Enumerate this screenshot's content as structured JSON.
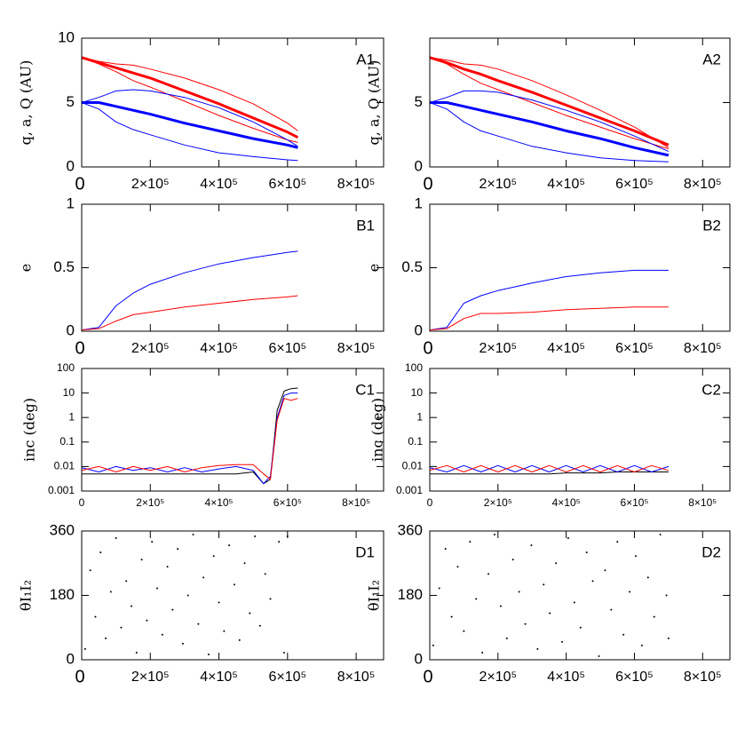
{
  "chart_data": [
    {
      "type": "line",
      "label": "A1",
      "ylabel": "q, a, Q (AU)",
      "x": [
        0,
        50000,
        100000,
        150000,
        200000,
        300000,
        400000,
        500000,
        600000,
        630000
      ],
      "series": [
        {
          "color": "#ff0000",
          "line_width": 3,
          "values": [
            8.5,
            8.1,
            7.7,
            7.3,
            6.9,
            5.9,
            4.9,
            3.8,
            2.7,
            2.3
          ]
        },
        {
          "color": "#ff0000",
          "line_width": 1,
          "values": [
            8.5,
            8.2,
            8.0,
            7.9,
            7.6,
            6.9,
            6.0,
            4.9,
            3.4,
            2.8
          ]
        },
        {
          "color": "#ff0000",
          "line_width": 1,
          "values": [
            8.5,
            8.0,
            7.4,
            6.7,
            6.2,
            5.1,
            4.0,
            3.0,
            2.1,
            1.9
          ]
        },
        {
          "color": "#0000ff",
          "line_width": 3,
          "values": [
            5,
            5,
            4.7,
            4.4,
            4.1,
            3.4,
            2.8,
            2.2,
            1.7,
            1.5
          ]
        },
        {
          "color": "#0000ff",
          "line_width": 1,
          "values": [
            5,
            5.4,
            5.9,
            6.0,
            5.9,
            5.4,
            4.6,
            3.5,
            2.1,
            1.6
          ]
        },
        {
          "color": "#0000ff",
          "line_width": 1,
          "values": [
            5,
            4.5,
            3.5,
            2.9,
            2.5,
            1.7,
            1.1,
            0.8,
            0.55,
            0.5
          ]
        }
      ],
      "xlim": [
        0,
        880000
      ],
      "ylim": [
        0,
        10
      ],
      "xticks": [
        0,
        {
          "value": 200000,
          "label": "2×10⁵"
        },
        {
          "value": 400000,
          "label": "4×10⁵"
        },
        {
          "value": 600000,
          "label": "6×10⁵"
        },
        {
          "value": 800000,
          "label": "8×10⁵"
        }
      ],
      "yticks": [
        0,
        5,
        10
      ]
    },
    {
      "type": "line",
      "label": "A2",
      "ylabel": "q, a, Q (AU)",
      "x": [
        0,
        50000,
        100000,
        150000,
        200000,
        300000,
        400000,
        500000,
        600000,
        700000
      ],
      "series": [
        {
          "color": "#ff0000",
          "line_width": 3,
          "values": [
            8.5,
            8.1,
            7.6,
            7.2,
            6.7,
            5.8,
            4.8,
            3.8,
            2.8,
            1.7
          ]
        },
        {
          "color": "#ff0000",
          "line_width": 1,
          "values": [
            8.5,
            8.3,
            8.0,
            7.9,
            7.6,
            6.7,
            5.6,
            4.4,
            3.1,
            1.5
          ]
        },
        {
          "color": "#ff0000",
          "line_width": 1,
          "values": [
            8.5,
            8.0,
            7.2,
            6.5,
            6.0,
            5.0,
            4.0,
            3.1,
            2.2,
            1.4
          ]
        },
        {
          "color": "#0000ff",
          "line_width": 3,
          "values": [
            5,
            5,
            4.7,
            4.4,
            4.1,
            3.5,
            2.8,
            2.2,
            1.5,
            0.9
          ]
        },
        {
          "color": "#0000ff",
          "line_width": 1,
          "values": [
            5,
            5.4,
            5.9,
            5.9,
            5.8,
            5.2,
            4.4,
            3.5,
            2.4,
            1.2
          ]
        },
        {
          "color": "#0000ff",
          "line_width": 1,
          "values": [
            5,
            4.5,
            3.5,
            2.8,
            2.4,
            1.6,
            1.1,
            0.7,
            0.5,
            0.4
          ]
        }
      ],
      "xlim": [
        0,
        880000
      ],
      "ylim": [
        0,
        10
      ],
      "xticks": [
        0,
        {
          "value": 200000,
          "label": "2×10⁵"
        },
        {
          "value": 400000,
          "label": "4×10⁵"
        },
        {
          "value": 600000,
          "label": "6×10⁵"
        },
        {
          "value": 800000,
          "label": "8×10⁵"
        }
      ],
      "yticks": [
        0,
        5
      ]
    },
    {
      "type": "line",
      "label": "B1",
      "ylabel": "e",
      "x": [
        0,
        50000,
        100000,
        150000,
        200000,
        300000,
        400000,
        500000,
        600000,
        630000
      ],
      "series": [
        {
          "color": "#0000ff",
          "line_width": 1,
          "values": [
            0.01,
            0.03,
            0.2,
            0.3,
            0.37,
            0.46,
            0.53,
            0.58,
            0.62,
            0.63
          ]
        },
        {
          "color": "#ff0000",
          "line_width": 1,
          "values": [
            0.01,
            0.02,
            0.08,
            0.13,
            0.15,
            0.19,
            0.22,
            0.25,
            0.27,
            0.28
          ]
        }
      ],
      "xlim": [
        0,
        880000
      ],
      "ylim": [
        0,
        1
      ],
      "xticks": [
        0,
        {
          "value": 200000,
          "label": "2×10⁵"
        },
        {
          "value": 400000,
          "label": "4×10⁵"
        },
        {
          "value": 600000,
          "label": "6×10⁵"
        },
        {
          "value": 800000,
          "label": "8×10⁵"
        }
      ],
      "yticks": [
        0,
        0.5,
        1
      ]
    },
    {
      "type": "line",
      "label": "B2",
      "ylabel": "e",
      "x": [
        0,
        50000,
        100000,
        150000,
        200000,
        300000,
        400000,
        500000,
        600000,
        700000
      ],
      "series": [
        {
          "color": "#0000ff",
          "line_width": 1,
          "values": [
            0.01,
            0.03,
            0.22,
            0.28,
            0.32,
            0.38,
            0.43,
            0.46,
            0.48,
            0.48
          ]
        },
        {
          "color": "#ff0000",
          "line_width": 1,
          "values": [
            0.01,
            0.02,
            0.1,
            0.14,
            0.14,
            0.15,
            0.17,
            0.18,
            0.19,
            0.19
          ]
        }
      ],
      "xlim": [
        0,
        880000
      ],
      "ylim": [
        0,
        1
      ],
      "xticks": [
        0,
        {
          "value": 200000,
          "label": "2×10⁵"
        },
        {
          "value": 400000,
          "label": "4×10⁵"
        },
        {
          "value": 600000,
          "label": "6×10⁵"
        },
        {
          "value": 800000,
          "label": "8×10⁵"
        }
      ],
      "yticks": [
        0,
        0.5,
        1
      ]
    },
    {
      "type": "line",
      "label": "C1",
      "ylabel": "inc (deg)",
      "log_y": true,
      "x": [
        0,
        50000,
        100000,
        150000,
        200000,
        250000,
        300000,
        350000,
        400000,
        450000,
        500000,
        530000,
        550000,
        570000,
        590000,
        610000,
        630000
      ],
      "series": [
        {
          "color": "#000000",
          "line_width": 1,
          "values": [
            0.005,
            0.005,
            0.005,
            0.005,
            0.005,
            0.005,
            0.005,
            0.005,
            0.005,
            0.005,
            0.006,
            0.002,
            0.003,
            2,
            12,
            15,
            16
          ]
        },
        {
          "color": "#0000ff",
          "line_width": 1,
          "values": [
            0.009,
            0.006,
            0.01,
            0.007,
            0.009,
            0.006,
            0.009,
            0.006,
            0.008,
            0.01,
            0.007,
            0.002,
            0.004,
            1,
            8,
            10,
            10
          ]
        },
        {
          "color": "#ff0000",
          "line_width": 1,
          "values": [
            0.007,
            0.01,
            0.006,
            0.01,
            0.007,
            0.01,
            0.006,
            0.009,
            0.011,
            0.012,
            0.012,
            0.005,
            0.003,
            0.8,
            6,
            5,
            6
          ]
        }
      ],
      "xlim": [
        0,
        880000
      ],
      "ylim": [
        0.001,
        100
      ],
      "xticks": [
        0,
        {
          "value": 200000,
          "label": "2×10⁵"
        },
        {
          "value": 400000,
          "label": "4×10⁵"
        },
        {
          "value": 600000,
          "label": "6×10⁵"
        },
        {
          "value": 800000,
          "label": "8×10⁵"
        }
      ],
      "yticks": [
        0.001,
        0.01,
        0.1,
        1,
        10,
        100
      ]
    },
    {
      "type": "line",
      "label": "C2",
      "ylabel": "inc (deg)",
      "log_y": true,
      "x": [
        0,
        50000,
        100000,
        150000,
        200000,
        250000,
        300000,
        350000,
        400000,
        450000,
        500000,
        550000,
        600000,
        650000,
        700000
      ],
      "series": [
        {
          "color": "#000000",
          "line_width": 1,
          "values": [
            0.005,
            0.005,
            0.005,
            0.005,
            0.005,
            0.005,
            0.005,
            0.005,
            0.0055,
            0.0055,
            0.0055,
            0.006,
            0.006,
            0.006,
            0.006
          ]
        },
        {
          "color": "#0000ff",
          "line_width": 1,
          "values": [
            0.009,
            0.006,
            0.011,
            0.006,
            0.011,
            0.006,
            0.011,
            0.006,
            0.011,
            0.006,
            0.011,
            0.006,
            0.011,
            0.006,
            0.01
          ]
        },
        {
          "color": "#ff0000",
          "line_width": 1,
          "values": [
            0.007,
            0.011,
            0.006,
            0.011,
            0.006,
            0.011,
            0.006,
            0.011,
            0.006,
            0.011,
            0.006,
            0.011,
            0.006,
            0.011,
            0.007
          ]
        }
      ],
      "xlim": [
        0,
        880000
      ],
      "ylim": [
        0.001,
        100
      ],
      "xticks": [
        0,
        {
          "value": 200000,
          "label": "2×10⁵"
        },
        {
          "value": 400000,
          "label": "4×10⁵"
        },
        {
          "value": 600000,
          "label": "6×10⁵"
        },
        {
          "value": 800000,
          "label": "8×10⁵"
        }
      ],
      "yticks": [
        0.001,
        0.01,
        0.1,
        1,
        10,
        100
      ]
    },
    {
      "type": "scatter",
      "label": "D1",
      "ylabel": "θI₁I₂",
      "color": "#000000",
      "x": [
        10000,
        25000,
        40000,
        55000,
        70000,
        85000,
        100000,
        115000,
        130000,
        145000,
        160000,
        175000,
        190000,
        205000,
        220000,
        235000,
        250000,
        265000,
        280000,
        295000,
        310000,
        325000,
        340000,
        355000,
        370000,
        385000,
        400000,
        415000,
        430000,
        445000,
        460000,
        475000,
        490000,
        505000,
        520000,
        535000,
        550000,
        575000,
        590000,
        600000
      ],
      "values": [
        30,
        250,
        120,
        300,
        60,
        190,
        340,
        90,
        220,
        150,
        20,
        280,
        110,
        330,
        200,
        70,
        260,
        140,
        310,
        45,
        180,
        350,
        100,
        230,
        15,
        290,
        160,
        80,
        320,
        210,
        55,
        270,
        130,
        345,
        95,
        240,
        170,
        330,
        20,
        345
      ],
      "xlim": [
        0,
        880000
      ],
      "ylim": [
        0,
        360
      ],
      "xticks": [
        0,
        {
          "value": 200000,
          "label": "2×10⁵"
        },
        {
          "value": 400000,
          "label": "4×10⁵"
        },
        {
          "value": 600000,
          "label": "6×10⁵"
        },
        {
          "value": 800000,
          "label": "8×10⁵"
        }
      ],
      "yticks": [
        0,
        180,
        360
      ]
    },
    {
      "type": "scatter",
      "label": "D2",
      "ylabel": "θI₁I₂",
      "color": "#000000",
      "x": [
        10000,
        28000,
        46000,
        64000,
        82000,
        100000,
        118000,
        136000,
        154000,
        172000,
        190000,
        208000,
        226000,
        244000,
        262000,
        280000,
        298000,
        316000,
        334000,
        352000,
        370000,
        388000,
        406000,
        424000,
        442000,
        460000,
        478000,
        496000,
        514000,
        532000,
        550000,
        568000,
        586000,
        604000,
        622000,
        640000,
        658000,
        676000,
        694000,
        700000
      ],
      "values": [
        40,
        200,
        310,
        120,
        260,
        80,
        330,
        170,
        20,
        240,
        350,
        150,
        60,
        280,
        190,
        100,
        320,
        30,
        210,
        130,
        270,
        50,
        340,
        160,
        90,
        300,
        220,
        10,
        250,
        140,
        330,
        70,
        190,
        290,
        40,
        230,
        120,
        350,
        180,
        60
      ],
      "xlim": [
        0,
        880000
      ],
      "ylim": [
        0,
        360
      ],
      "xticks": [
        0,
        {
          "value": 200000,
          "label": "2×10⁵"
        },
        {
          "value": 400000,
          "label": "4×10⁵"
        },
        {
          "value": 600000,
          "label": "6×10⁵"
        },
        {
          "value": 800000,
          "label": "8×10⁵"
        }
      ],
      "yticks": [
        0,
        180,
        360
      ]
    }
  ]
}
